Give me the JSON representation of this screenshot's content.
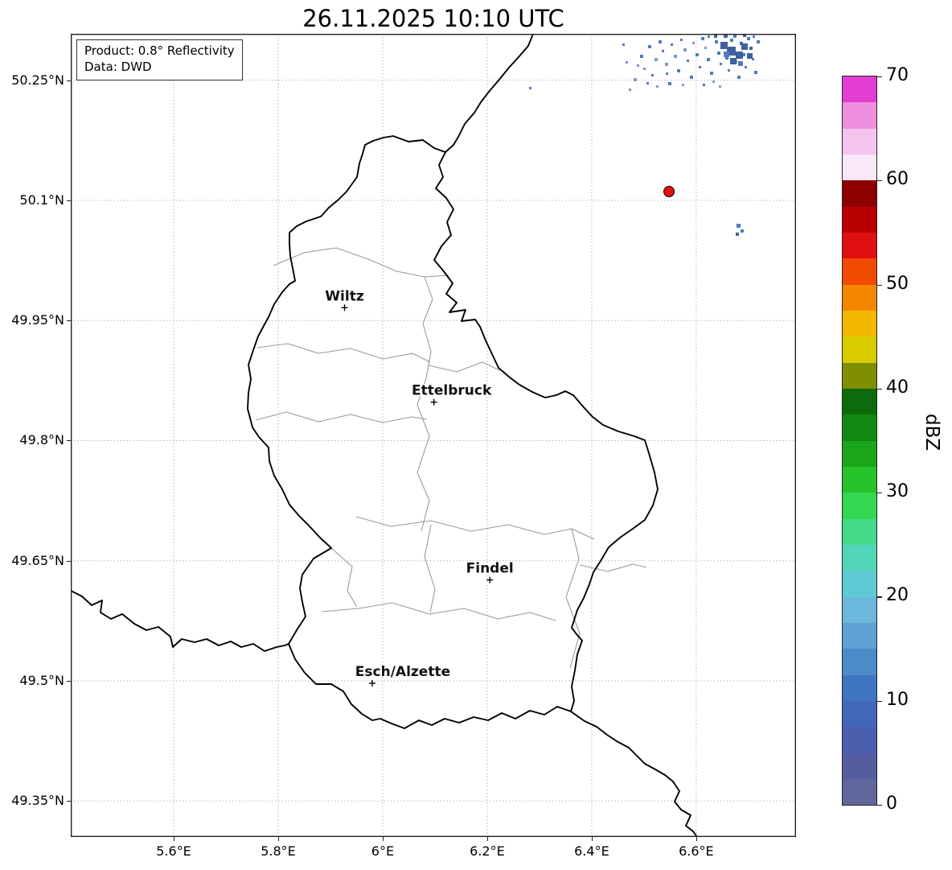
{
  "title": "26.11.2025 10:10 UTC",
  "info_box": {
    "line1": "Product: 0.8° Reflectivity",
    "line2": "Data: DWD"
  },
  "map": {
    "lon_min": 5.403,
    "lon_max": 6.791,
    "lat_min": 49.305,
    "lat_max": 50.308,
    "x_ticks": [
      {
        "value": 5.6,
        "label": "5.6°E"
      },
      {
        "value": 5.8,
        "label": "5.8°E"
      },
      {
        "value": 6.0,
        "label": "6°E"
      },
      {
        "value": 6.2,
        "label": "6.2°E"
      },
      {
        "value": 6.4,
        "label": "6.4°E"
      },
      {
        "value": 6.6,
        "label": "6.6°E"
      }
    ],
    "y_ticks": [
      {
        "value": 50.25,
        "label": "50.25°N"
      },
      {
        "value": 50.1,
        "label": "50.1°N"
      },
      {
        "value": 49.95,
        "label": "49.95°N"
      },
      {
        "value": 49.8,
        "label": "49.8°N"
      },
      {
        "value": 49.65,
        "label": "49.65°N"
      },
      {
        "value": 49.5,
        "label": "49.5°N"
      },
      {
        "value": 49.35,
        "label": "49.35°N"
      }
    ],
    "cities": [
      {
        "name": "Wiltz",
        "lon": 5.927,
        "lat": 49.966,
        "label_dx": 0
      },
      {
        "name": "Ettelbruck",
        "lon": 6.098,
        "lat": 49.848,
        "label_dx": 22
      },
      {
        "name": "Findel",
        "lon": 6.205,
        "lat": 49.626,
        "label_dx": 0
      },
      {
        "name": "Esch/Alzette",
        "lon": 5.98,
        "lat": 49.497,
        "label_dx": 38
      }
    ],
    "radar_site": {
      "lon": 6.548,
      "lat": 50.111,
      "color": "#e01010"
    }
  },
  "echoes": {
    "colors": [
      "#7b9cc9",
      "#527bbd",
      "#40619e"
    ],
    "points": [
      [
        700,
        55,
        4,
        0
      ],
      [
        708,
        26,
        4,
        1
      ],
      [
        712,
        42,
        3,
        0
      ],
      [
        718,
        14,
        4,
        1
      ],
      [
        722,
        50,
        3,
        1
      ],
      [
        726,
        30,
        4,
        0
      ],
      [
        731,
        8,
        4,
        1
      ],
      [
        735,
        20,
        3,
        1
      ],
      [
        739,
        36,
        4,
        0
      ],
      [
        743,
        60,
        4,
        1
      ],
      [
        746,
        12,
        3,
        1
      ],
      [
        750,
        26,
        4,
        0
      ],
      [
        754,
        44,
        4,
        1
      ],
      [
        758,
        6,
        3,
        1
      ],
      [
        762,
        18,
        4,
        0
      ],
      [
        766,
        32,
        3,
        1
      ],
      [
        770,
        52,
        4,
        1
      ],
      [
        773,
        10,
        3,
        0
      ],
      [
        777,
        24,
        4,
        1
      ],
      [
        781,
        40,
        3,
        1
      ],
      [
        784,
        4,
        4,
        1
      ],
      [
        788,
        16,
        3,
        0
      ],
      [
        791,
        30,
        4,
        1
      ],
      [
        795,
        47,
        4,
        1
      ],
      [
        798,
        58,
        3,
        0
      ],
      [
        801,
        8,
        4,
        1
      ],
      [
        804,
        22,
        4,
        1
      ],
      [
        807,
        36,
        3,
        1
      ],
      [
        811,
        12,
        4,
        2
      ],
      [
        814,
        28,
        4,
        1
      ],
      [
        817,
        44,
        3,
        1
      ],
      [
        820,
        6,
        4,
        1
      ],
      [
        823,
        18,
        4,
        2
      ],
      [
        826,
        33,
        3,
        1
      ],
      [
        829,
        52,
        4,
        1
      ],
      [
        832,
        10,
        4,
        2
      ],
      [
        835,
        24,
        4,
        1
      ],
      [
        838,
        40,
        3,
        1
      ],
      [
        841,
        4,
        4,
        1
      ],
      [
        844,
        16,
        4,
        2
      ],
      [
        847,
        30,
        3,
        1
      ],
      [
        850,
        46,
        4,
        1
      ],
      [
        853,
        8,
        4,
        1
      ],
      [
        704,
        38,
        3,
        0
      ],
      [
        716,
        60,
        3,
        1
      ],
      [
        728,
        64,
        3,
        0
      ],
      [
        740,
        48,
        3,
        1
      ],
      [
        760,
        62,
        3,
        0
      ],
      [
        786,
        62,
        3,
        1
      ],
      [
        806,
        64,
        3,
        0
      ],
      [
        690,
        34,
        3,
        0
      ],
      [
        686,
        12,
        3,
        1
      ],
      [
        694,
        68,
        3,
        0
      ],
      [
        808,
        10,
        9,
        2
      ],
      [
        816,
        16,
        11,
        2
      ],
      [
        827,
        22,
        9,
        2
      ],
      [
        820,
        30,
        8,
        2
      ],
      [
        834,
        12,
        8,
        2
      ],
      [
        841,
        24,
        7,
        2
      ],
      [
        812,
        22,
        7,
        1
      ],
      [
        830,
        34,
        6,
        1
      ],
      [
        800,
        1,
        4,
        2
      ],
      [
        812,
        0,
        5,
        2
      ],
      [
        824,
        1,
        4,
        1
      ],
      [
        836,
        0,
        4,
        2
      ],
      [
        848,
        2,
        3,
        1
      ],
      [
        792,
        2,
        3,
        1
      ],
      [
        828,
        236,
        5,
        1
      ],
      [
        833,
        243,
        4,
        1
      ],
      [
        827,
        247,
        4,
        2
      ],
      [
        570,
        66,
        3,
        1
      ]
    ]
  },
  "colorbar": {
    "label": "dBZ",
    "unit_min": 0,
    "unit_max": 70,
    "ticks": [
      0,
      10,
      20,
      30,
      40,
      50,
      60,
      70
    ],
    "colors": [
      "#60679c",
      "#545d9e",
      "#4a5fae",
      "#4267b8",
      "#4076c1",
      "#4c8aca",
      "#5fa1d4",
      "#6cb8dc",
      "#60cad4",
      "#52d5b8",
      "#45da8a",
      "#35d650",
      "#27c32a",
      "#1aa51a",
      "#118811",
      "#0c6c0c",
      "#7f8f00",
      "#d8cc00",
      "#f5b800",
      "#f58700",
      "#ef4a00",
      "#e01010",
      "#b80000",
      "#8c0000",
      "#f9e8f8",
      "#f5c4ee",
      "#ee8fe0",
      "#e23ed2"
    ]
  }
}
